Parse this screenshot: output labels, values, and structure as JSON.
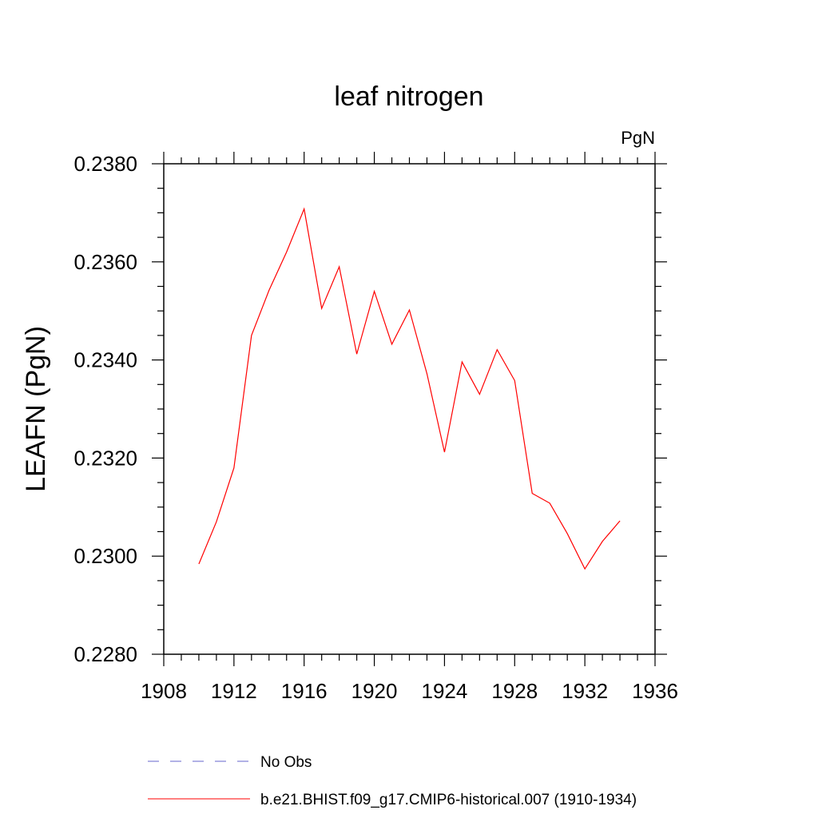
{
  "chart_data": {
    "type": "line",
    "title": "leaf nitrogen",
    "units": "PgN",
    "ylabel": "LEAFN  (PgN)",
    "xlabel": "",
    "xlim": [
      1908,
      1936
    ],
    "ylim": [
      0.228,
      0.238
    ],
    "x_ticks": [
      "1908",
      "1912",
      "1916",
      "1920",
      "1924",
      "1928",
      "1932",
      "1936"
    ],
    "y_ticks": [
      "0.2280",
      "0.2300",
      "0.2320",
      "0.2340",
      "0.2360",
      "0.2380"
    ],
    "grid": false,
    "legend_position": "bottom",
    "series": [
      {
        "name": "b.e21.BHIST.f09_g17.CMIP6-historical.007 (1910-1934)",
        "color": "#ff0000",
        "style": "solid",
        "x": [
          1910,
          1911,
          1912,
          1913,
          1914,
          1915,
          1916,
          1917,
          1918,
          1919,
          1920,
          1921,
          1922,
          1923,
          1924,
          1925,
          1926,
          1927,
          1928,
          1929,
          1930,
          1931,
          1932,
          1933,
          1934
        ],
        "values": [
          0.22984,
          0.2307,
          0.2318,
          0.2345,
          0.23542,
          0.2362,
          0.23708,
          0.23505,
          0.2359,
          0.23412,
          0.2354,
          0.23432,
          0.23502,
          0.23372,
          0.23212,
          0.23396,
          0.2333,
          0.23421,
          0.23358,
          0.23128,
          0.23108,
          0.23046,
          0.22974,
          0.2303,
          0.23072
        ]
      }
    ],
    "legend": [
      {
        "label": "No Obs",
        "color": "#6666cc",
        "style": "dashed"
      },
      {
        "label": "b.e21.BHIST.f09_g17.CMIP6-historical.007 (1910-1934)",
        "color": "#ff0000",
        "style": "solid"
      }
    ]
  }
}
